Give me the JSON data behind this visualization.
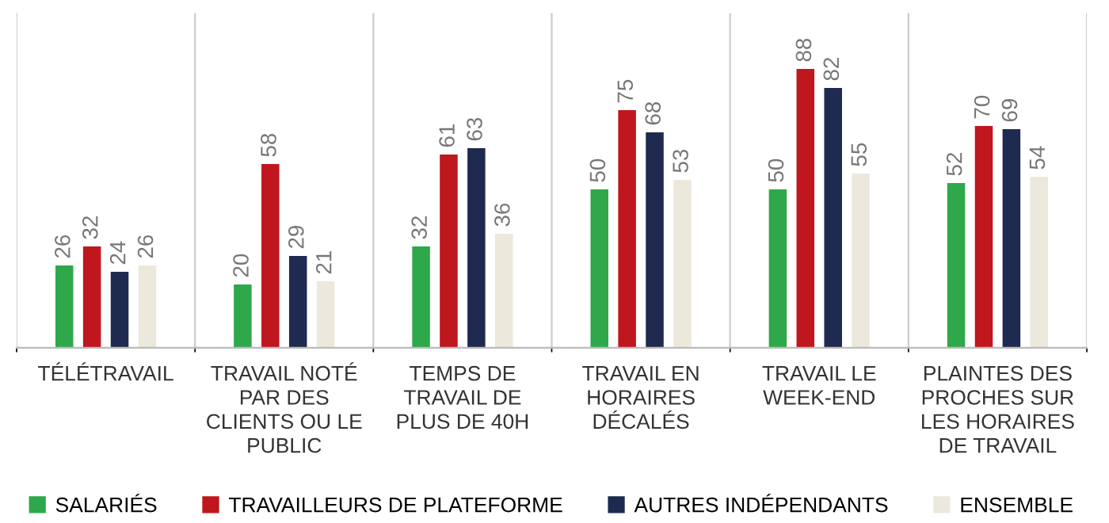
{
  "chart_data": {
    "type": "bar",
    "categories": [
      "TÉLÉTRAVAIL",
      "TRAVAIL NOTÉ\nPAR DES\nCLIENTS OU LE\nPUBLIC",
      "TEMPS DE\nTRAVAIL DE\nPLUS DE 40H",
      "TRAVAIL EN\nHORAIRES\nDÉCALÉS",
      "TRAVAIL LE\nWEEK-END",
      "PLAINTES DES\nPROCHES SUR\nLES HORAIRES\nDE TRAVAIL"
    ],
    "series": [
      {
        "name": "SALARIÉS",
        "color": "#2ea84a",
        "values": [
          26,
          20,
          32,
          50,
          50,
          52
        ]
      },
      {
        "name": "TRAVAILLEURS DE PLATEFORME",
        "color": "#c0161d",
        "values": [
          32,
          58,
          61,
          75,
          88,
          70
        ]
      },
      {
        "name": "AUTRES INDÉPENDANTS",
        "color": "#1f2a50",
        "values": [
          24,
          29,
          63,
          68,
          82,
          69
        ]
      },
      {
        "name": "ENSEMBLE",
        "color": "#ece8dc",
        "values": [
          26,
          21,
          36,
          53,
          55,
          54
        ]
      }
    ],
    "data_labels": true,
    "grid": "x",
    "legend": "bottom"
  }
}
